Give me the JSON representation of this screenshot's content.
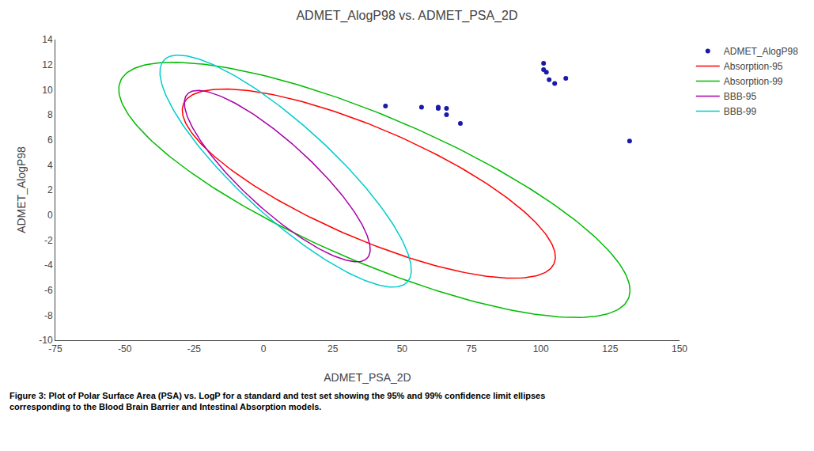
{
  "chart_data": {
    "type": "scatter",
    "title": "ADMET_AlogP98 vs. ADMET_PSA_2D",
    "x_label": "ADMET_PSA_2D",
    "y_label": "ADMET_AlogP98",
    "xlim": [
      -75,
      150
    ],
    "ylim": [
      -10,
      14
    ],
    "xticks": [
      -75,
      -50,
      -25,
      0,
      25,
      50,
      75,
      100,
      125,
      150
    ],
    "yticks": [
      -10,
      -8,
      -6,
      -4,
      -2,
      0,
      2,
      4,
      6,
      8,
      10,
      12,
      14
    ],
    "grid": false,
    "marker": "circle",
    "series": [
      {
        "name": "ADMET_AlogP98",
        "color": "#1a1aaa",
        "x": [
          44,
          57,
          63,
          66,
          71,
          66,
          63,
          101,
          101,
          102,
          103,
          105,
          109,
          132
        ],
        "values": [
          8.7,
          8.6,
          8.5,
          8.0,
          7.3,
          8.5,
          8.6,
          12.1,
          11.6,
          11.4,
          10.8,
          10.5,
          10.9,
          5.9
        ]
      }
    ],
    "ellipses": [
      {
        "name": "Absorption-95",
        "color": "#ff0000",
        "cx": 38,
        "cy": 2.5,
        "width": 135,
        "height": 9.5,
        "angle": -5
      },
      {
        "name": "Absorption-99",
        "color": "#00bb00",
        "cx": 40,
        "cy": 2.0,
        "width": 185,
        "height": 12.5,
        "angle": -5
      },
      {
        "name": "BBB-95",
        "color": "#aa00aa",
        "cx": 5,
        "cy": 3.1,
        "width": 68,
        "height": 7.0,
        "angle": -10
      },
      {
        "name": "BBB-99",
        "color": "#00cccc",
        "cx": 8,
        "cy": 3.5,
        "width": 92,
        "height": 9.5,
        "angle": -10
      }
    ],
    "caption": [
      "Figure 3: Plot of Polar Surface Area (PSA) vs. LogP for a standard and test set showing the 95% and 99% confidence limit ellipses",
      "corresponding to the Blood Brain Barrier and Intestinal Absorption models."
    ]
  }
}
